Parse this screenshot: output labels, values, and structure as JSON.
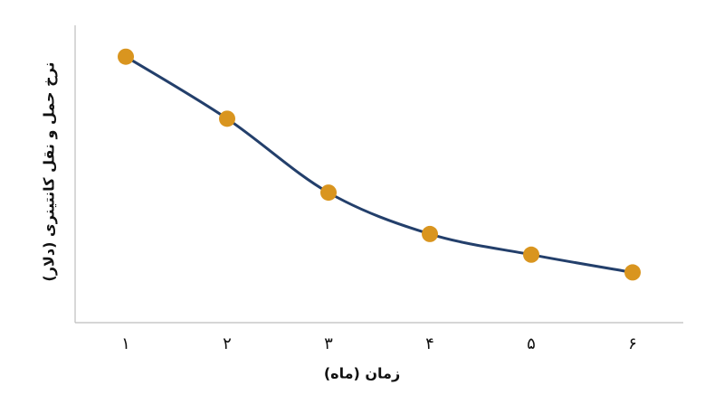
{
  "chart_data": {
    "type": "line",
    "x_label": "زمان (ماه)",
    "y_label": "نرخ حمل و نقل کانتینری (دلار)",
    "categories": [
      "۱",
      "۲",
      "۳",
      "۴",
      "۵",
      "۶"
    ],
    "series": [
      {
        "color": "#233f6b",
        "marker_color": "#d9951f",
        "values": [
          90,
          69,
          44,
          30,
          23,
          17
        ]
      }
    ],
    "ylim": [
      0,
      100
    ]
  }
}
